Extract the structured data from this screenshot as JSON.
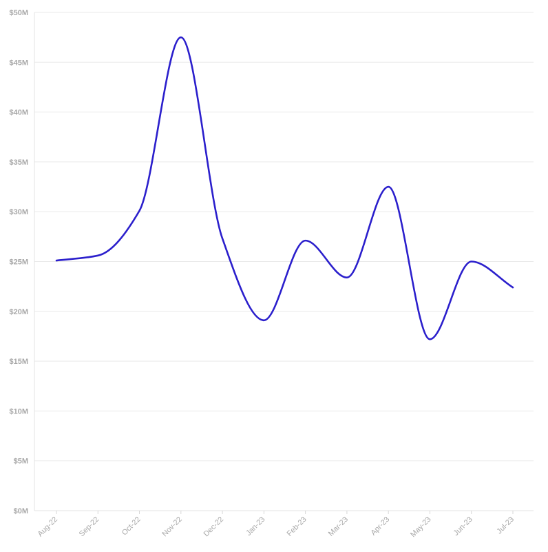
{
  "chart_data": {
    "type": "line",
    "title": "",
    "xlabel": "",
    "ylabel": "",
    "x": [
      "Aug-22",
      "Sep-22",
      "Oct-22",
      "Nov-22",
      "Dec-22",
      "Jan-23",
      "Feb-23",
      "Mar-23",
      "Apr-23",
      "May-23",
      "Jun-23",
      "Jul-23"
    ],
    "series": [
      {
        "color": "#2b1fcc",
        "values": [
          25.1,
          25.6,
          30.1,
          47.5,
          27.3,
          19.1,
          27.1,
          23.4,
          32.5,
          17.2,
          25.0,
          22.4
        ]
      }
    ],
    "ylim": [
      0,
      50
    ],
    "y_ticks": [
      0,
      5,
      10,
      15,
      20,
      25,
      30,
      35,
      40,
      45,
      50
    ],
    "y_tick_labels": [
      "$0M",
      "$5M",
      "$10M",
      "$15M",
      "$20M",
      "$25M",
      "$30M",
      "$35M",
      "$40M",
      "$45M",
      "$50M"
    ],
    "grid": "horizontal",
    "legend": "none"
  }
}
